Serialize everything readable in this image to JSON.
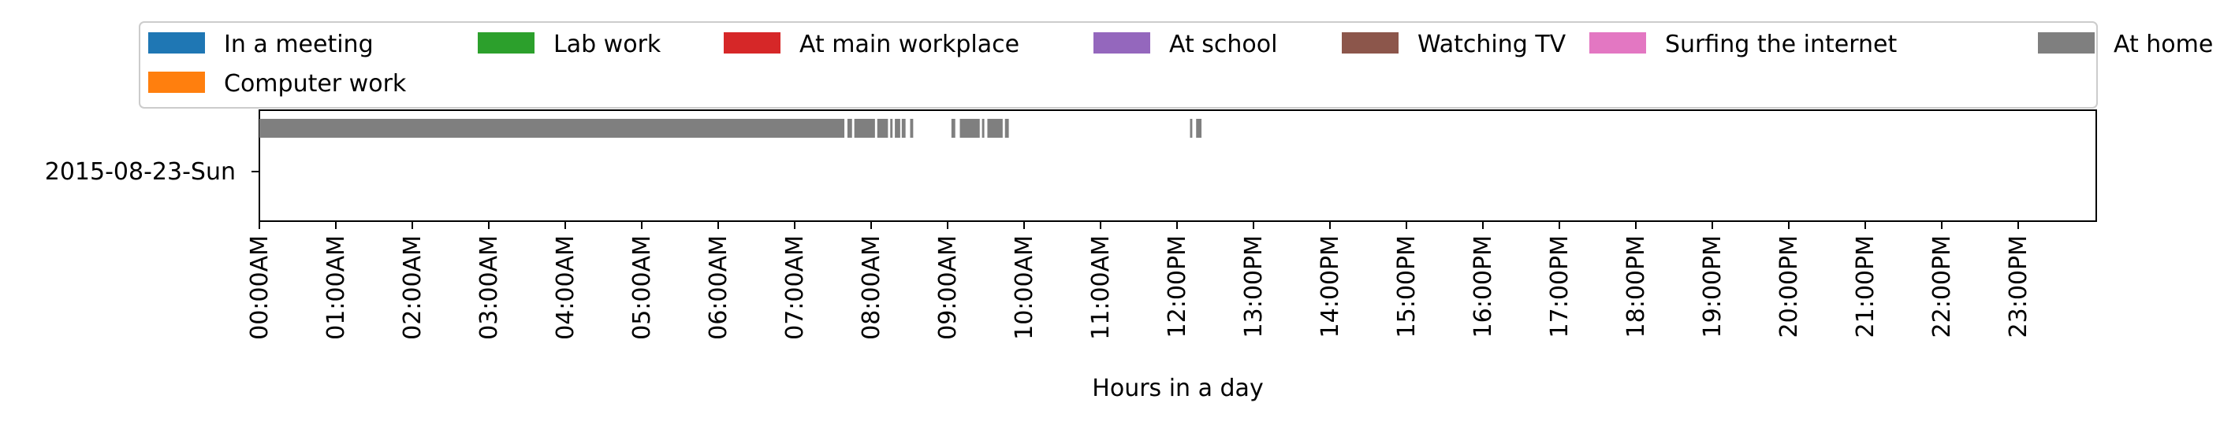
{
  "chart_data": {
    "type": "timeline",
    "title": "",
    "xlabel": "Hours in a day",
    "ylabel": "",
    "xlim": [
      0,
      24
    ],
    "x_tick_labels": [
      "00:00AM",
      "01:00AM",
      "02:00AM",
      "03:00AM",
      "04:00AM",
      "05:00AM",
      "06:00AM",
      "07:00AM",
      "08:00AM",
      "09:00AM",
      "10:00AM",
      "11:00AM",
      "12:00PM",
      "13:00PM",
      "14:00PM",
      "15:00PM",
      "16:00PM",
      "17:00PM",
      "18:00PM",
      "19:00PM",
      "20:00PM",
      "21:00PM",
      "22:00PM",
      "23:00PM"
    ],
    "rows": [
      "2015-08-23-Sun"
    ],
    "legend_position": "top",
    "grid": false,
    "legend": [
      {
        "name": "In a meeting",
        "color": "#1f77b4"
      },
      {
        "name": "Lab work",
        "color": "#2ca02c"
      },
      {
        "name": "At main workplace",
        "color": "#d62728"
      },
      {
        "name": "At school",
        "color": "#9467bd"
      },
      {
        "name": "Watching TV",
        "color": "#8c564b"
      },
      {
        "name": "Surfing the internet",
        "color": "#e377c2"
      },
      {
        "name": "At home",
        "color": "#7f7f7f"
      },
      {
        "name": "Computer work",
        "color": "#ff7f0e"
      }
    ],
    "series": [
      {
        "name": "At home",
        "row": "2015-08-23-Sun",
        "color": "#7f7f7f",
        "segments": [
          [
            0.0,
            7.65
          ],
          [
            7.69,
            7.75
          ],
          [
            7.78,
            8.05
          ],
          [
            8.08,
            8.22
          ],
          [
            8.25,
            8.28
          ],
          [
            8.31,
            8.38
          ],
          [
            8.4,
            8.45
          ],
          [
            8.51,
            8.55
          ],
          [
            9.05,
            9.1
          ],
          [
            9.16,
            9.42
          ],
          [
            9.45,
            9.48
          ],
          [
            9.52,
            9.72
          ],
          [
            9.75,
            9.8
          ],
          [
            12.17,
            12.2
          ],
          [
            12.25,
            12.32
          ]
        ]
      }
    ]
  }
}
